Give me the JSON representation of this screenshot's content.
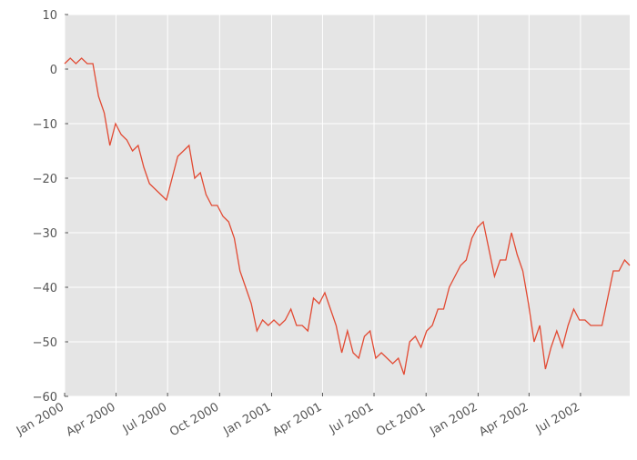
{
  "chart_data": {
    "type": "line",
    "x": [
      0,
      10,
      20,
      30,
      40,
      50,
      60,
      70,
      80,
      90,
      100,
      110,
      120,
      130,
      140,
      150,
      160,
      170,
      180,
      190,
      200,
      210,
      220,
      230,
      240,
      250,
      260,
      270,
      280,
      290,
      300,
      310,
      320,
      330,
      340,
      350,
      360,
      370,
      380,
      390,
      400,
      410,
      420,
      430,
      440,
      450,
      460,
      470,
      480,
      490,
      500,
      510,
      520,
      530,
      540,
      550,
      560,
      570,
      580,
      590,
      600,
      610,
      620,
      630,
      640,
      650,
      660,
      670,
      680,
      690,
      700,
      710,
      720,
      730,
      740,
      750,
      760,
      770,
      780,
      790,
      800,
      810,
      820,
      830,
      840,
      850,
      860,
      870,
      880,
      890,
      900,
      910,
      920,
      930,
      940,
      950,
      960,
      970,
      980,
      990,
      999
    ],
    "series": [
      {
        "color": "#e24a33",
        "values": [
          1,
          2,
          1,
          2,
          1,
          1,
          -5,
          -8,
          -14,
          -10,
          -12,
          -13,
          -15,
          -14,
          -18,
          -21,
          -22,
          -23,
          -24,
          -20,
          -16,
          -15,
          -14,
          -20,
          -19,
          -23,
          -25,
          -25,
          -27,
          -28,
          -31,
          -37,
          -40,
          -43,
          -48,
          -46,
          -47,
          -46,
          -47,
          -46,
          -44,
          -47,
          -47,
          -48,
          -42,
          -43,
          -41,
          -44,
          -47,
          -52,
          -48,
          -52,
          -53,
          -49,
          -48,
          -53,
          -52,
          -53,
          -54,
          -53,
          -56,
          -50,
          -49,
          -51,
          -48,
          -47,
          -44,
          -44,
          -40,
          -38,
          -36,
          -35,
          -31,
          -29,
          -28,
          -33,
          -38,
          -35,
          -35,
          -30,
          -34,
          -37,
          -43,
          -50,
          -47,
          -55,
          -51,
          -48,
          -51,
          -47,
          -44,
          -46,
          -46,
          -47,
          -47,
          -47,
          -42,
          -37,
          -37,
          -35,
          -36
        ]
      }
    ],
    "xlim": [
      0,
      999
    ],
    "xticks": [
      {
        "value": 0,
        "label": "Jan 2000"
      },
      {
        "value": 91,
        "label": "Apr 2000"
      },
      {
        "value": 182,
        "label": "Jul 2000"
      },
      {
        "value": 274,
        "label": "Oct 2000"
      },
      {
        "value": 366,
        "label": "Jan 2001"
      },
      {
        "value": 456,
        "label": "Apr 2001"
      },
      {
        "value": 547,
        "label": "Jul 2001"
      },
      {
        "value": 639,
        "label": "Oct 2001"
      },
      {
        "value": 731,
        "label": "Jan 2002"
      },
      {
        "value": 821,
        "label": "Apr 2002"
      },
      {
        "value": 912,
        "label": "Jul 2002"
      }
    ],
    "ylim": [
      -60,
      10
    ],
    "yticks": [
      {
        "value": -60,
        "label": "−60"
      },
      {
        "value": -50,
        "label": "−50"
      },
      {
        "value": -40,
        "label": "−40"
      },
      {
        "value": -30,
        "label": "−30"
      },
      {
        "value": -20,
        "label": "−20"
      },
      {
        "value": -10,
        "label": "−10"
      },
      0,
      10
    ],
    "grid": true
  }
}
